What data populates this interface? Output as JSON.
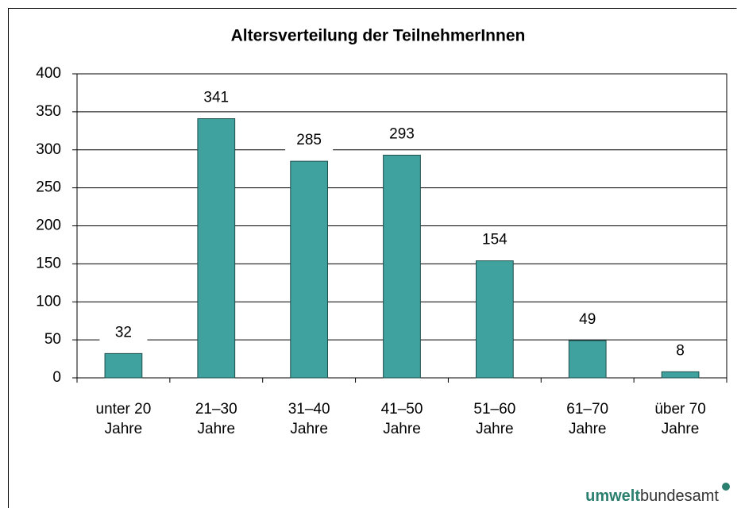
{
  "chart_data": {
    "type": "bar",
    "title": "Altersverteilung der TeilnehmerInnen",
    "categories": [
      [
        "unter 20",
        "Jahre"
      ],
      [
        "21–30",
        "Jahre"
      ],
      [
        "31–40",
        "Jahre"
      ],
      [
        "41–50",
        "Jahre"
      ],
      [
        "51–60",
        "Jahre"
      ],
      [
        "61–70",
        "Jahre"
      ],
      [
        "über 70",
        "Jahre"
      ]
    ],
    "values": [
      32,
      341,
      285,
      293,
      154,
      49,
      8
    ],
    "color": "#40a29f",
    "ylim": [
      0,
      400
    ],
    "yticks": [
      0,
      50,
      100,
      150,
      200,
      250,
      300,
      350,
      400
    ],
    "grid": true
  },
  "logo": {
    "bold": "umwelt",
    "regular": "bundesamt"
  }
}
